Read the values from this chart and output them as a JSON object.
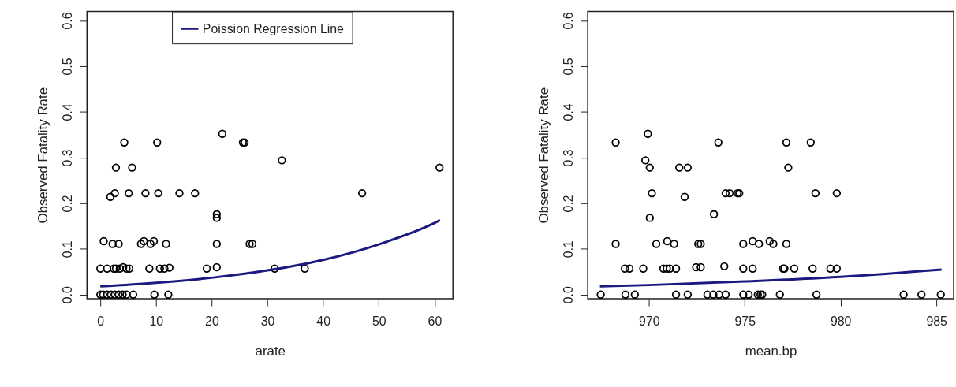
{
  "chart_data": [
    {
      "type": "scatter",
      "xlabel": "arate",
      "ylabel": "Observed Fatality Rate",
      "xlim": [
        -2.4,
        63.3
      ],
      "xticks": [
        0,
        10,
        20,
        30,
        40,
        50,
        60
      ],
      "ylim": [
        -0.009,
        0.62
      ],
      "yticks": [
        {
          "value": 0,
          "label": "0.0"
        },
        0.1,
        0.2,
        0.3,
        0.4,
        0.5,
        0.6
      ],
      "grid": false,
      "legend": "top",
      "marker": "circle",
      "series": [
        {
          "color": "#000000",
          "x": [
            4.3,
            10.2,
            25.6,
            25.9,
            21.9,
            32.6,
            2.8,
            5.7,
            60.9,
            2.6,
            5.1,
            8.1,
            10.4,
            14.2,
            17.0,
            47.0,
            1.8,
            20.9,
            20.9,
            0.6,
            7.8,
            9.6,
            2.2,
            3.3,
            7.3,
            9.0,
            11.8,
            20.9,
            26.8,
            27.3,
            4.1,
            20.9,
            12.4,
            0,
            1.2,
            2.4,
            2.8,
            3.5,
            4.7,
            5.2,
            8.8,
            10.7,
            11.5,
            19.1,
            31.3,
            36.7,
            0,
            0.5,
            1.2,
            1.9,
            2.6,
            3.3,
            4.0,
            4.7,
            5.9,
            9.7,
            12.2
          ],
          "values": [
            0.333,
            0.333,
            0.333,
            0.333,
            0.352,
            0.294,
            0.278,
            0.278,
            0.278,
            0.222,
            0.222,
            0.222,
            0.222,
            0.222,
            0.222,
            0.222,
            0.214,
            0.176,
            0.168,
            0.117,
            0.117,
            0.117,
            0.111,
            0.111,
            0.111,
            0.111,
            0.111,
            0.111,
            0.111,
            0.111,
            0.06,
            0.06,
            0.059,
            0.057,
            0.057,
            0.057,
            0.057,
            0.057,
            0.057,
            0.057,
            0.057,
            0.057,
            0.057,
            0.057,
            0.057,
            0.057,
            0,
            0,
            0,
            0,
            0,
            0,
            0,
            0,
            0,
            0,
            0
          ]
        },
        {
          "name": "Poission Regression Line",
          "type": "line",
          "color": "#1c1a80",
          "marker": "none",
          "x": [
            0,
            10,
            20,
            30,
            40,
            50,
            60,
            61
          ],
          "values": [
            0.018,
            0.026,
            0.037,
            0.053,
            0.076,
            0.11,
            0.157,
            0.163
          ]
        }
      ]
    },
    {
      "type": "scatter",
      "xlabel": "mean.bp",
      "ylabel": "Observed Fatality Rate",
      "xlim": [
        966.8,
        985.9
      ],
      "xticks": [
        970,
        975,
        980,
        985
      ],
      "ylim": [
        -0.009,
        0.62
      ],
      "yticks": [
        {
          "value": 0,
          "label": "0.0"
        },
        0.1,
        0.2,
        0.3,
        0.4,
        0.5,
        0.6
      ],
      "grid": false,
      "legend": "top",
      "marker": "circle",
      "series": [
        {
          "color": "#000000",
          "x": [
            968.26,
            973.62,
            977.17,
            978.44,
            969.94,
            969.81,
            970.04,
            971.58,
            972.02,
            977.27,
            970.15,
            974.0,
            974.21,
            974.62,
            974.71,
            978.69,
            979.8,
            971.86,
            973.39,
            970.04,
            970.95,
            975.41,
            976.3,
            968.26,
            970.38,
            971.31,
            972.57,
            972.7,
            974.92,
            975.74,
            976.49,
            977.17,
            973.93,
            972.46,
            972.7,
            968.74,
            968.98,
            969.7,
            970.75,
            970.93,
            971.09,
            971.41,
            974.92,
            975.41,
            977.0,
            977.07,
            977.58,
            978.54,
            979.47,
            979.8,
            967.48,
            968.77,
            969.26,
            971.41,
            972.02,
            973.05,
            973.36,
            973.66,
            974.0,
            974.92,
            975.2,
            975.68,
            975.82,
            975.91,
            976.83,
            978.74,
            983.29,
            984.22,
            985.23
          ],
          "values": [
            0.333,
            0.333,
            0.333,
            0.333,
            0.352,
            0.294,
            0.278,
            0.278,
            0.278,
            0.278,
            0.222,
            0.222,
            0.222,
            0.222,
            0.222,
            0.222,
            0.222,
            0.214,
            0.176,
            0.168,
            0.117,
            0.117,
            0.117,
            0.111,
            0.111,
            0.111,
            0.111,
            0.111,
            0.111,
            0.111,
            0.111,
            0.111,
            0.062,
            0.06,
            0.06,
            0.057,
            0.057,
            0.057,
            0.057,
            0.057,
            0.057,
            0.057,
            0.057,
            0.057,
            0.057,
            0.057,
            0.057,
            0.057,
            0.057,
            0.057,
            0,
            0,
            0,
            0,
            0,
            0,
            0,
            0,
            0,
            0,
            0,
            0,
            0,
            0,
            0,
            0,
            0,
            0,
            0
          ]
        },
        {
          "name": "Poission Regression Line",
          "type": "line",
          "color": "#1c1a80",
          "marker": "none",
          "x": [
            967.44,
            970,
            975,
            980,
            985.27
          ],
          "values": [
            0.018,
            0.021,
            0.029,
            0.039,
            0.055
          ]
        }
      ]
    }
  ]
}
